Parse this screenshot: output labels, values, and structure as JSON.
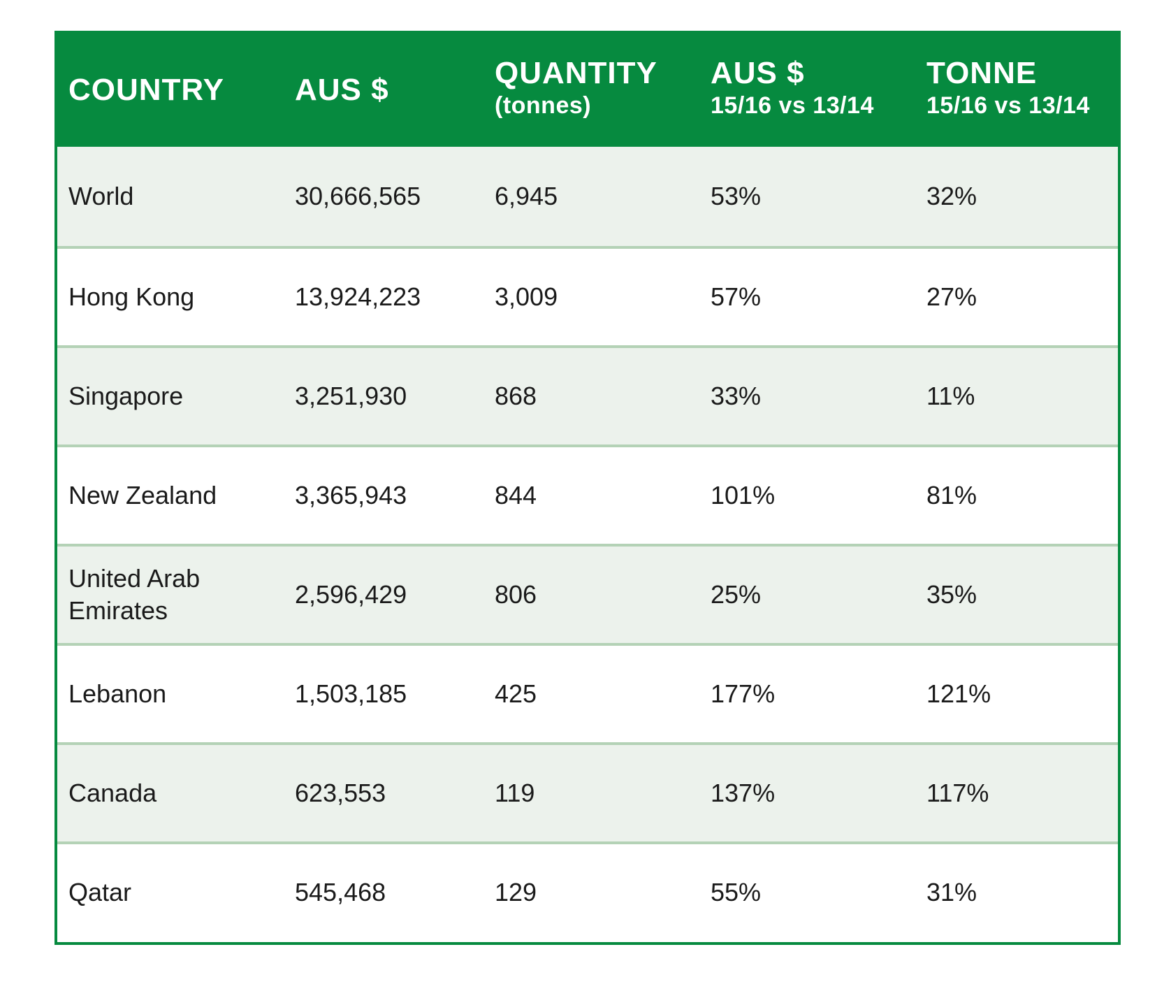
{
  "header": {
    "country": "COUNTRY",
    "aus": "AUS $",
    "quantity": "QUANTITY",
    "quantity_unit": "(tonnes)",
    "aus_change": "AUS $",
    "aus_change_period": "15/16 vs 13/14",
    "tonne_change": "TONNE",
    "tonne_change_period": "15/16 vs 13/14"
  },
  "rows": [
    {
      "country": "World",
      "aus": "30,666,565",
      "quantity": "6,945",
      "aus_change": "53%",
      "tonne_change": "32%"
    },
    {
      "country": "Hong Kong",
      "aus": "13,924,223",
      "quantity": "3,009",
      "aus_change": "57%",
      "tonne_change": "27%"
    },
    {
      "country": "Singapore",
      "aus": "3,251,930",
      "quantity": "868",
      "aus_change": "33%",
      "tonne_change": "11%"
    },
    {
      "country": "New Zealand",
      "aus": "3,365,943",
      "quantity": "844",
      "aus_change": "101%",
      "tonne_change": "81%"
    },
    {
      "country": "United Arab Emirates",
      "aus": "2,596,429",
      "quantity": "806",
      "aus_change": "25%",
      "tonne_change": "35%"
    },
    {
      "country": "Lebanon",
      "aus": "1,503,185",
      "quantity": "425",
      "aus_change": "177%",
      "tonne_change": "121%"
    },
    {
      "country": "Canada",
      "aus": "623,553",
      "quantity": "119",
      "aus_change": "137%",
      "tonne_change": "117%"
    },
    {
      "country": "Qatar",
      "aus": "545,468",
      "quantity": "129",
      "aus_change": "55%",
      "tonne_change": "31%"
    }
  ],
  "colors": {
    "header_bg": "#068a3f",
    "shaded_row": "#ecf2ec",
    "divider": "#b4d2b6"
  }
}
